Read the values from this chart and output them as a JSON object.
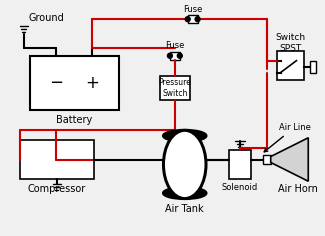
{
  "bg_color": "#f0f0f0",
  "wire_color_red": "#cc0000",
  "wire_color_black": "#000000",
  "component_fill": "#ffffff",
  "component_edge": "#000000",
  "labels": {
    "ground_top": "Ground",
    "battery": "Battery",
    "pressure_switch": "Pressure\nSwitch",
    "fuse_top": "Fuse",
    "fuse_mid": "Fuse",
    "switch": "Switch\nSPST",
    "compressor": "Compressor",
    "air_tank": "Air Tank",
    "solenoid": "Solenoid",
    "air_horn": "Air Horn",
    "air_line": "Air Line"
  }
}
